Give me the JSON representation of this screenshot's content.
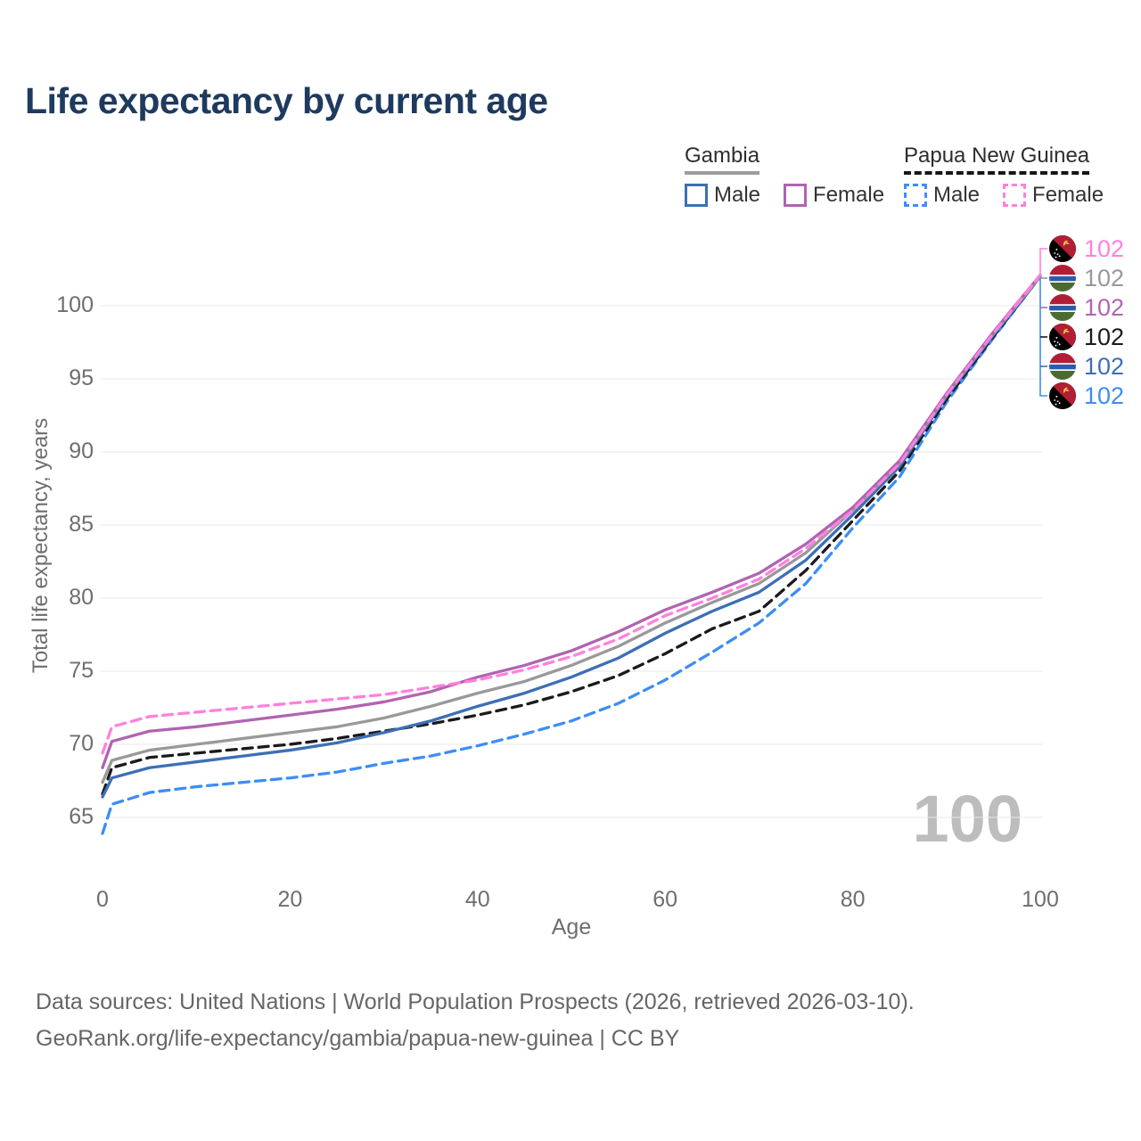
{
  "title": "Life expectancy by current age",
  "legend": {
    "groups": [
      {
        "id": "gambia",
        "title": "Gambia",
        "line_style": "solid",
        "underline_color": "#9c9c9c",
        "items": [
          {
            "label": "Male",
            "series": "gambia_male"
          },
          {
            "label": "Female",
            "series": "gambia_female"
          }
        ]
      },
      {
        "id": "png",
        "title": "Papua New Guinea",
        "line_style": "dashed",
        "underline_color": "#161616",
        "items": [
          {
            "label": "Male",
            "series": "png_male"
          },
          {
            "label": "Female",
            "series": "png_female"
          }
        ]
      }
    ]
  },
  "chart_data": {
    "type": "line",
    "title": "Life expectancy by current age",
    "xlabel": "Age",
    "ylabel": "Total life expectancy, years",
    "x_ticks": [
      0,
      20,
      40,
      60,
      80,
      100
    ],
    "y_ticks": [
      65,
      70,
      75,
      80,
      85,
      90,
      95,
      100
    ],
    "xlim": [
      0,
      100
    ],
    "ylim": [
      63.5,
      103.5
    ],
    "grid": true,
    "legend_position": "top-right",
    "x": [
      0,
      1,
      5,
      10,
      15,
      20,
      25,
      30,
      35,
      40,
      45,
      50,
      55,
      60,
      65,
      70,
      75,
      80,
      85,
      90,
      95,
      100
    ],
    "series": [
      {
        "id": "gambia_female",
        "country": "Gambia",
        "sex": "female",
        "color": "#b064b0",
        "dash": false,
        "flag": "gm",
        "values": [
          68.4,
          70.2,
          70.9,
          71.2,
          71.6,
          72.0,
          72.4,
          72.9,
          73.6,
          74.6,
          75.4,
          76.4,
          77.7,
          79.2,
          80.4,
          81.7,
          83.7,
          86.2,
          89.4,
          94.0,
          98.2,
          102.1
        ]
      },
      {
        "id": "gambia_both",
        "country": "Gambia",
        "sex": "all",
        "color": "#999999",
        "dash": false,
        "flag": "gm",
        "values": [
          67.4,
          68.9,
          69.6,
          70.0,
          70.4,
          70.8,
          71.2,
          71.8,
          72.6,
          73.5,
          74.3,
          75.4,
          76.7,
          78.3,
          79.7,
          81.0,
          83.1,
          86.0,
          89.2,
          93.9,
          98.1,
          102.0
        ]
      },
      {
        "id": "gambia_male",
        "country": "Gambia",
        "sex": "male",
        "color": "#3d6fb4",
        "dash": false,
        "flag": "gm",
        "values": [
          66.4,
          67.7,
          68.4,
          68.8,
          69.2,
          69.6,
          70.1,
          70.8,
          71.6,
          72.6,
          73.5,
          74.6,
          75.9,
          77.6,
          79.1,
          80.4,
          82.6,
          85.7,
          89.0,
          93.8,
          98.0,
          102.0
        ]
      },
      {
        "id": "png_female",
        "country": "Papua New Guinea",
        "sex": "female",
        "color": "#ff80de",
        "dash": true,
        "flag": "pg",
        "values": [
          69.4,
          71.2,
          71.9,
          72.2,
          72.5,
          72.8,
          73.1,
          73.4,
          73.9,
          74.4,
          75.1,
          76.0,
          77.2,
          78.8,
          80.0,
          81.3,
          83.4,
          86.0,
          89.2,
          93.9,
          98.1,
          102.1
        ]
      },
      {
        "id": "png_both",
        "country": "Papua New Guinea",
        "sex": "all",
        "color": "#1a1a1a",
        "dash": true,
        "flag": "pg",
        "values": [
          66.6,
          68.4,
          69.1,
          69.4,
          69.7,
          70.0,
          70.4,
          70.9,
          71.4,
          72.0,
          72.7,
          73.6,
          74.7,
          76.2,
          77.9,
          79.1,
          81.9,
          85.3,
          88.7,
          93.6,
          97.9,
          102.0
        ]
      },
      {
        "id": "png_male",
        "country": "Papua New Guinea",
        "sex": "male",
        "color": "#3d8df5",
        "dash": true,
        "flag": "pg",
        "values": [
          63.9,
          65.9,
          66.7,
          67.1,
          67.4,
          67.7,
          68.1,
          68.7,
          69.2,
          69.9,
          70.7,
          71.6,
          72.8,
          74.4,
          76.3,
          78.3,
          81.0,
          84.8,
          88.3,
          93.4,
          97.8,
          102.0
        ]
      }
    ],
    "end_labels": [
      {
        "series": "png_female",
        "value": "102"
      },
      {
        "series": "gambia_both",
        "value": "102"
      },
      {
        "series": "gambia_female",
        "value": "102"
      },
      {
        "series": "png_both",
        "value": "102"
      },
      {
        "series": "gambia_male",
        "value": "102"
      },
      {
        "series": "png_male",
        "value": "102"
      }
    ]
  },
  "watermark": "100",
  "footer": {
    "line1": "Data sources: United Nations | World Population Prospects (2026, retrieved 2026-03-10).",
    "line2": "GeoRank.org/life-expectancy/gambia/papua-new-guinea | CC BY"
  }
}
